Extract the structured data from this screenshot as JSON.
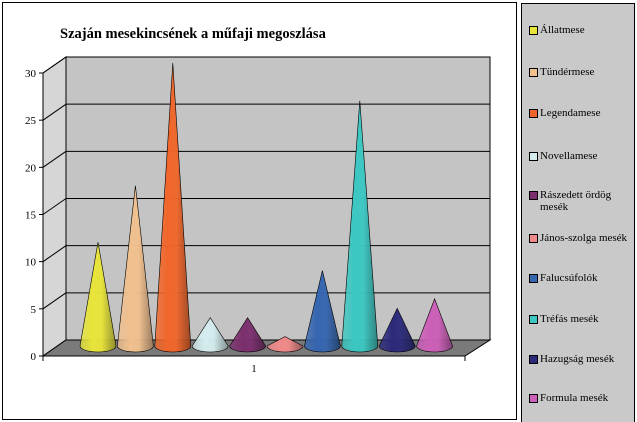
{
  "chart_data": {
    "type": "bar",
    "shape": "cone",
    "title": "Szaján mesekincsének a műfaji megoszlása",
    "categories": [
      "1"
    ],
    "ylim": [
      0,
      30
    ],
    "yticks": [
      "0",
      "5",
      "10",
      "15",
      "20",
      "25",
      "30"
    ],
    "grid": true,
    "legend_position": "right",
    "series": [
      {
        "name": "Állatmese",
        "values": [
          11
        ],
        "color": "#e8e43a"
      },
      {
        "name": "Tündérmese",
        "values": [
          17
        ],
        "color": "#f0c08e"
      },
      {
        "name": "Legendamese",
        "values": [
          30
        ],
        "color": "#f0662a"
      },
      {
        "name": "Novellamese",
        "values": [
          3
        ],
        "color": "#d4ecee"
      },
      {
        "name": "Rászedett ördög mesék",
        "values": [
          3
        ],
        "color": "#7b2f6e"
      },
      {
        "name": "János-szolga mesék",
        "values": [
          1
        ],
        "color": "#f08a8a"
      },
      {
        "name": "Falucsúfolók",
        "values": [
          8
        ],
        "color": "#3566b0"
      },
      {
        "name": "Tréfás mesék",
        "values": [
          26
        ],
        "color": "#3cc7c2"
      },
      {
        "name": "Hazugság mesék",
        "values": [
          4
        ],
        "color": "#2b2a7a"
      },
      {
        "name": "Formula mesék",
        "values": [
          5
        ],
        "color": "#cc5fb8"
      }
    ]
  }
}
